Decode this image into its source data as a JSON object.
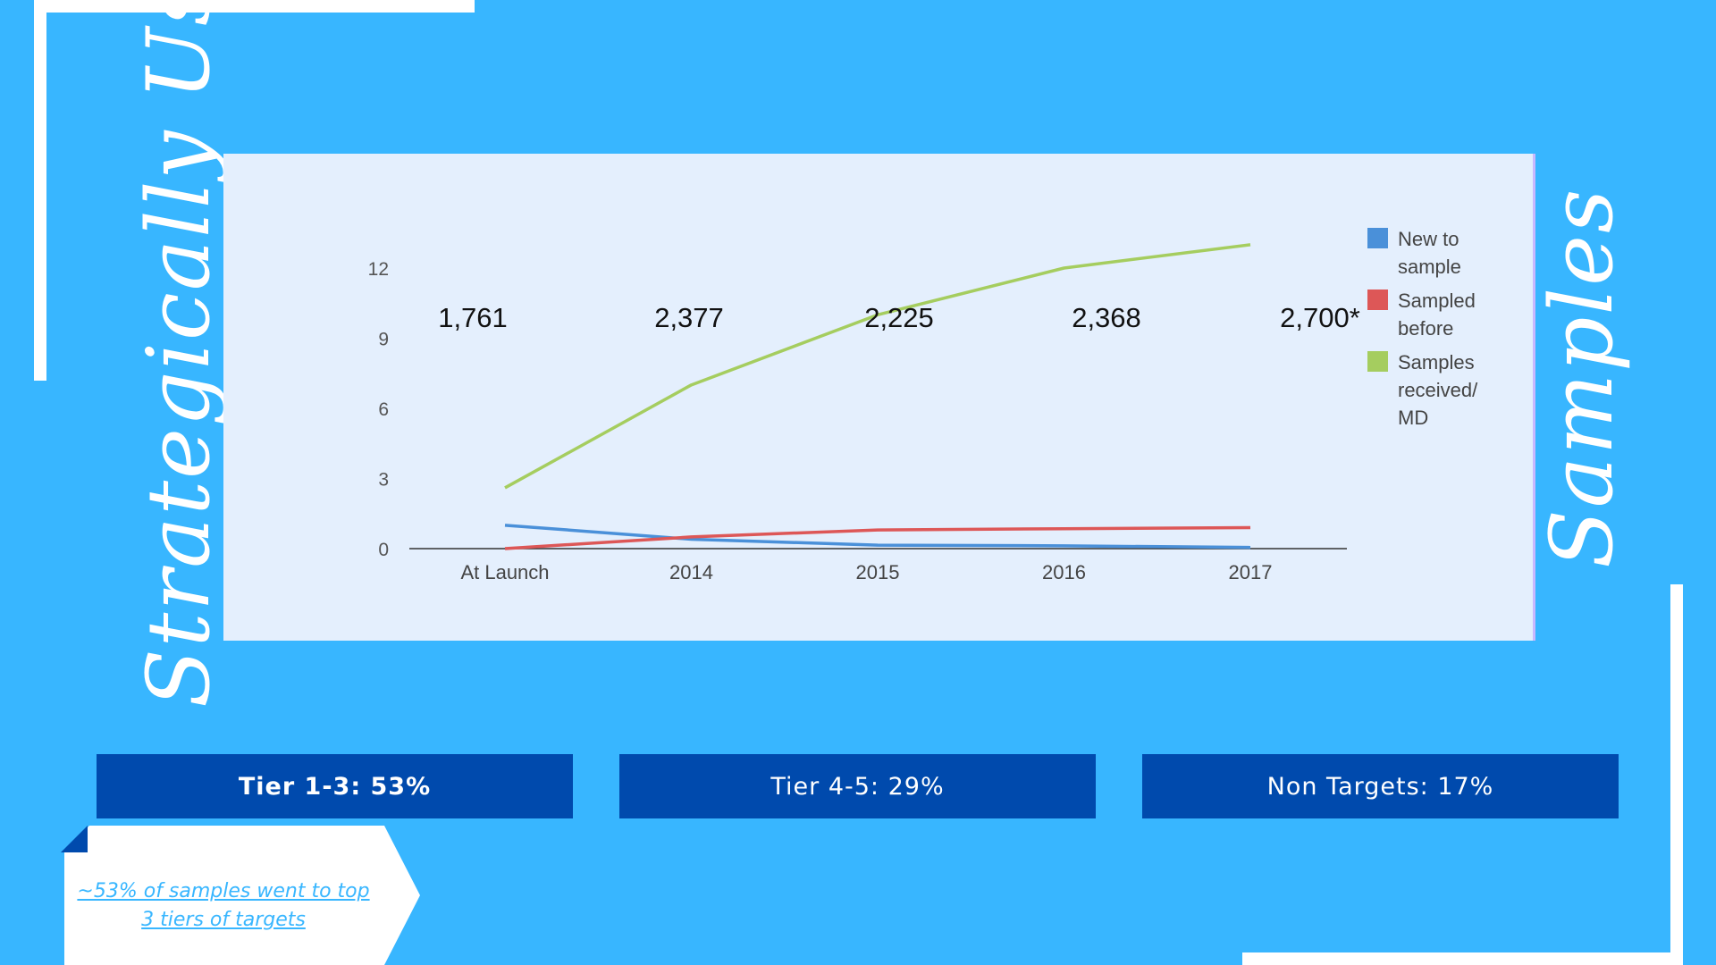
{
  "decor": {
    "left_script": "Strategically Used",
    "right_script": "Samples"
  },
  "tiers": [
    {
      "label": "Tier 1-3: 53%"
    },
    {
      "label": "Tier 4-5: 29%"
    },
    {
      "label": "Non Targets: 17%"
    }
  ],
  "note": "~53% of samples went to top 3 tiers of targets",
  "colors": {
    "background": "#38b6ff",
    "panel": "#e4effd",
    "tier_box": "#004aad",
    "new_to_sample": "#4a90d9",
    "sampled_before": "#dd5757",
    "samples_per_md": "#a5cd5f"
  },
  "chart_data": {
    "type": "line",
    "categories": [
      "At Launch",
      "2014",
      "2015",
      "2016",
      "2017"
    ],
    "ylim": [
      0,
      12
    ],
    "yticks": [
      0,
      3,
      6,
      9,
      12
    ],
    "grid": false,
    "legend_position": "right",
    "series": [
      {
        "name": "New to sample",
        "color": "#4a90d9",
        "values": [
          1.0,
          0.4,
          0.15,
          0.12,
          0.05
        ]
      },
      {
        "name": "Sampled before",
        "color": "#dd5757",
        "values": [
          0.0,
          0.5,
          0.8,
          0.85,
          0.9
        ]
      },
      {
        "name": "Samples received/ MD",
        "color": "#a5cd5f",
        "values": [
          2.6,
          7.0,
          10.0,
          12.0,
          13.0
        ]
      }
    ],
    "annotations": [
      "1,761",
      "2,377",
      "2,225",
      "2,368",
      "2,700*"
    ]
  }
}
